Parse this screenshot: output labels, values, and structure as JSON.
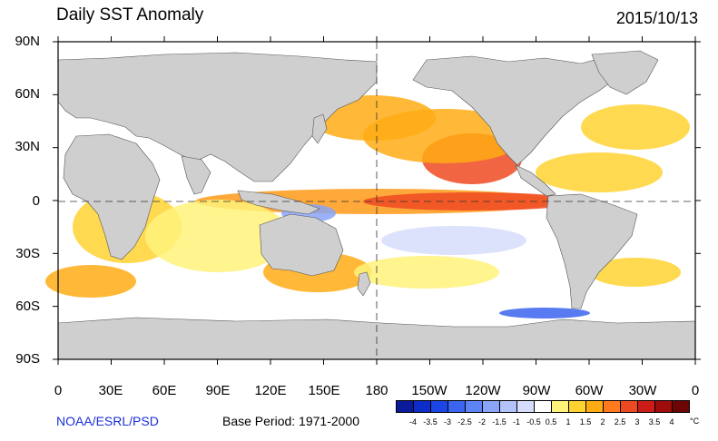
{
  "title": "Daily SST Anomaly",
  "date": "2015/10/13",
  "credit": "NOAA/ESRL/PSD",
  "base_period": "Base Period: 1971-2000",
  "lat_labels": [
    "90N",
    "60N",
    "30N",
    "0",
    "30S",
    "60S",
    "90S"
  ],
  "lon_labels": [
    "0",
    "30E",
    "60E",
    "90E",
    "120E",
    "150E",
    "180",
    "150W",
    "120W",
    "90W",
    "60W",
    "30W",
    "0"
  ],
  "colorbar": {
    "unit": "°C",
    "labels": [
      "-4",
      "-3.5",
      "-3",
      "-2.5",
      "-2",
      "-1.5",
      "-1",
      "-0.5",
      "0.5",
      "1",
      "1.5",
      "2",
      "2.5",
      "3",
      "3.5",
      "4"
    ],
    "colors": [
      "#0a1a9a",
      "#0d2cc8",
      "#1c45e6",
      "#3b64f0",
      "#5c84f5",
      "#8aa4f7",
      "#b2c2fa",
      "#d6ddfc",
      "#ffffff",
      "#fff27a",
      "#ffd230",
      "#ffac14",
      "#ff7a1e",
      "#ee4a22",
      "#cc1c18",
      "#9e0c0c",
      "#6e0404"
    ]
  },
  "colors": {
    "land": "#cfcfcf",
    "ocean": "#ffffff",
    "credit": "#1a2fd8"
  }
}
